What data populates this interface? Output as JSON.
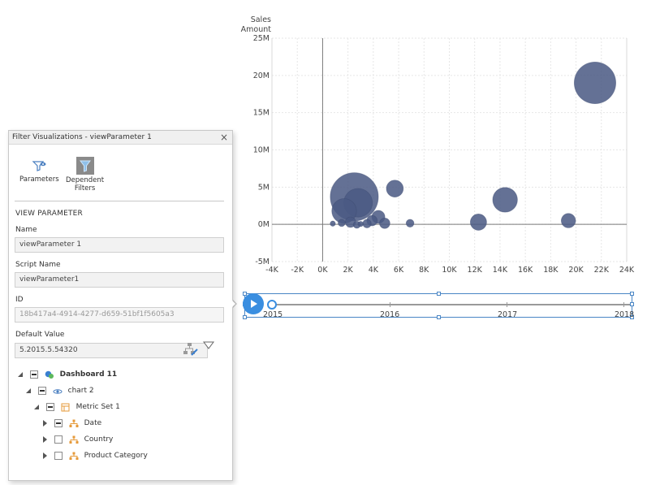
{
  "chart_data": {
    "type": "scatter",
    "title": "",
    "ylabel": "Sales\nAmount",
    "xlabel": "",
    "xlim": [
      -4000,
      24000
    ],
    "ylim": [
      -5000000,
      25000000
    ],
    "x_ticks": [
      "-4K",
      "-2K",
      "0K",
      "2K",
      "4K",
      "6K",
      "8K",
      "10K",
      "12K",
      "14K",
      "16K",
      "18K",
      "20K",
      "22K",
      "24K"
    ],
    "y_ticks": [
      "-5M",
      "0M",
      "5M",
      "10M",
      "15M",
      "20M",
      "25M"
    ],
    "grid": true,
    "legend": "none",
    "bubble_color": "#4b5a84",
    "points": [
      {
        "x": 21500,
        "y": 19000000,
        "size": 3.2
      },
      {
        "x": 2500,
        "y": 3700000,
        "size": 3.7
      },
      {
        "x": 2800,
        "y": 2900000,
        "size": 2.2
      },
      {
        "x": 1700,
        "y": 1800000,
        "size": 1.9
      },
      {
        "x": 14400,
        "y": 3300000,
        "size": 1.9
      },
      {
        "x": 5700,
        "y": 4800000,
        "size": 1.3
      },
      {
        "x": 12300,
        "y": 300000,
        "size": 1.25
      },
      {
        "x": 19400,
        "y": 500000,
        "size": 1.1
      },
      {
        "x": 4400,
        "y": 1000000,
        "size": 1.0
      },
      {
        "x": 3900,
        "y": 500000,
        "size": 0.8
      },
      {
        "x": 4900,
        "y": 150000,
        "size": 0.8
      },
      {
        "x": 2200,
        "y": 300000,
        "size": 0.8
      },
      {
        "x": 3500,
        "y": 100000,
        "size": 0.65
      },
      {
        "x": 6900,
        "y": 150000,
        "size": 0.6
      },
      {
        "x": 1500,
        "y": 200000,
        "size": 0.55
      },
      {
        "x": 2700,
        "y": -50000,
        "size": 0.55
      },
      {
        "x": 800,
        "y": 100000,
        "size": 0.4
      },
      {
        "x": 3000,
        "y": 50000,
        "size": 0.4
      }
    ]
  },
  "timeline": {
    "years": [
      "2015",
      "2016",
      "2017",
      "2018"
    ],
    "position": 0.0
  },
  "panel": {
    "title": "Filter Visualizations - viewParameter 1",
    "close": "×",
    "tabs": {
      "parameters": "Parameters",
      "dependent_line1": "Dependent",
      "dependent_line2": "Filters"
    },
    "section": "VIEW PARAMETER",
    "name_label": "Name",
    "name_value": "viewParameter 1",
    "script_label": "Script Name",
    "script_value": "viewParameter1",
    "id_label": "ID",
    "id_value": "18b417a4-4914-4277-d659-51bf1f5605a3",
    "default_label": "Default Value",
    "default_value": "5.2015.5.54320",
    "tree": {
      "dashboard": "Dashboard 11",
      "chart": "chart 2",
      "metric_set": "Metric Set 1",
      "date": "Date",
      "country": "Country",
      "product_category": "Product Category"
    }
  },
  "colors": {
    "accent": "#3a8ee0",
    "bubble": "#4b5a84",
    "hierarchy_icon": "#e69a3a"
  }
}
